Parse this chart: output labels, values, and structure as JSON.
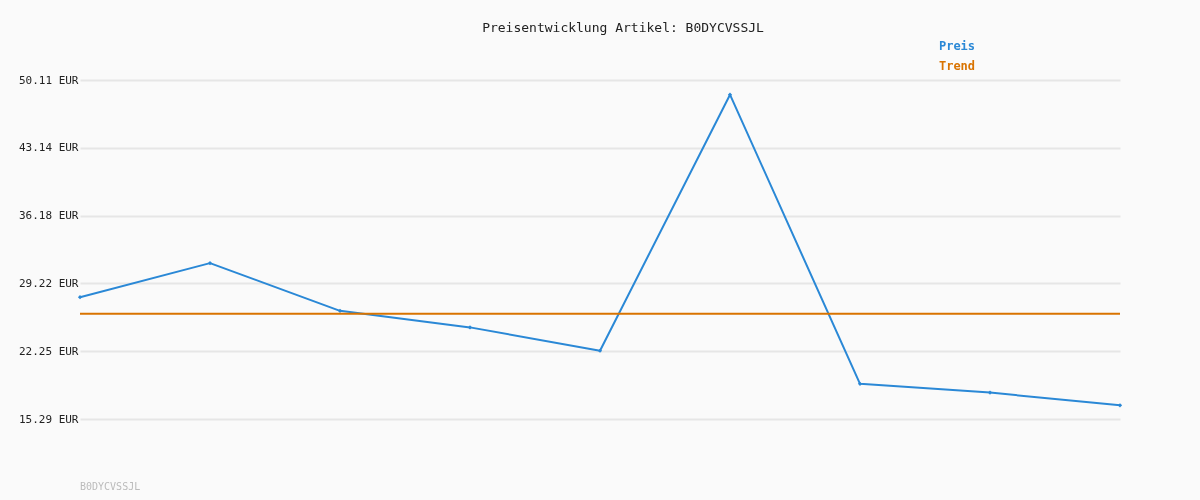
{
  "chart_data": {
    "type": "line",
    "title": "Preisentwicklung Artikel: B0DYCVSSJL",
    "categories": [
      null,
      null,
      null,
      null,
      null,
      null,
      null,
      null,
      null
    ],
    "series": [
      {
        "name": "Preis",
        "color": "#2a88d6",
        "values": [
          27.8,
          31.3,
          26.4,
          24.7,
          22.3,
          48.6,
          18.9,
          18.0,
          16.7
        ],
        "marker": "diamond"
      },
      {
        "name": "Trend",
        "color": "#d97300",
        "values": [
          26.1,
          26.1,
          26.1,
          26.1,
          26.1,
          26.1,
          26.1,
          26.1,
          26.1
        ],
        "marker": "none"
      }
    ],
    "ylim": [
      15.29,
      50.11
    ],
    "yticks": [
      {
        "value": 15.29,
        "label": "15.29 EUR"
      },
      {
        "value": 22.25,
        "label": "22.25 EUR"
      },
      {
        "value": 29.22,
        "label": "29.22 EUR"
      },
      {
        "value": 36.18,
        "label": "36.18 EUR"
      },
      {
        "value": 43.14,
        "label": "43.14 EUR"
      },
      {
        "value": 50.11,
        "label": "50.11 EUR"
      }
    ],
    "grid": "y",
    "legend": "top right",
    "tick_labels": "y",
    "annotations": [
      "B0DYCVSSJL"
    ]
  }
}
